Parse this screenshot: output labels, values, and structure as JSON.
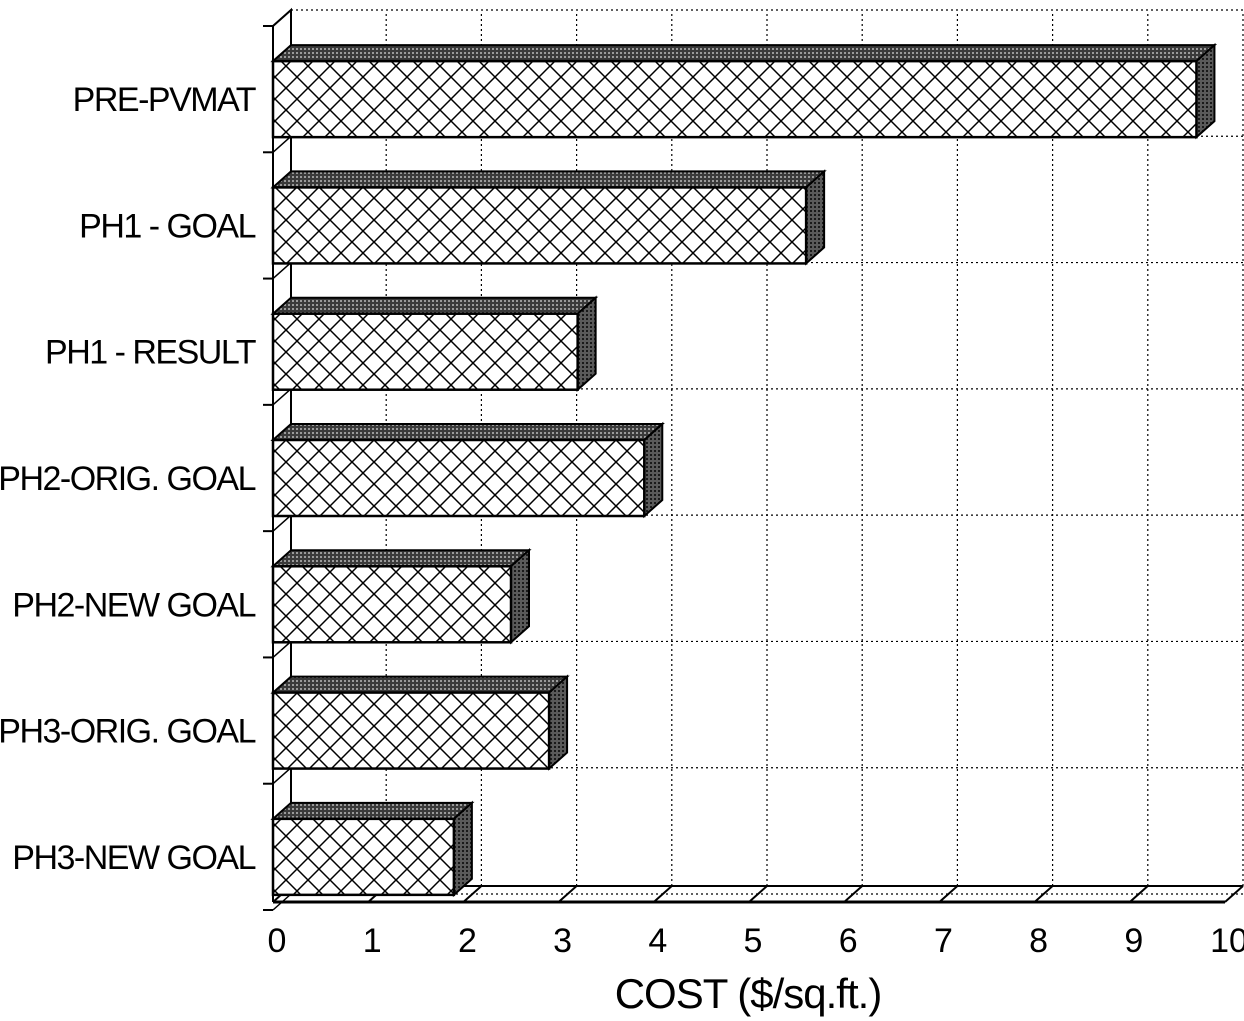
{
  "chart_data": {
    "type": "bar",
    "orientation": "horizontal",
    "style": "3d-crosshatch",
    "categories": [
      "PRE-PVMAT",
      "PH1 - GOAL",
      "PH1 - RESULT",
      "PH2-ORIG. GOAL",
      "PH2-NEW GOAL",
      "PH3-ORIG. GOAL",
      "PH3-NEW GOAL"
    ],
    "values": [
      9.7,
      5.6,
      3.2,
      3.9,
      2.5,
      2.9,
      1.9
    ],
    "title": "",
    "xlabel": "COST ($/sq.ft.)",
    "ylabel": "",
    "xlim": [
      0,
      10
    ],
    "xticks": [
      "0",
      "1",
      "2",
      "3",
      "4",
      "5",
      "6",
      "7",
      "8",
      "9",
      "10"
    ],
    "grid": true,
    "legend": "none",
    "colors": {
      "bar_fill": "#ffffff",
      "bar_hatch": "#000000",
      "bar_top": "#555555",
      "grid": "#000000"
    }
  }
}
